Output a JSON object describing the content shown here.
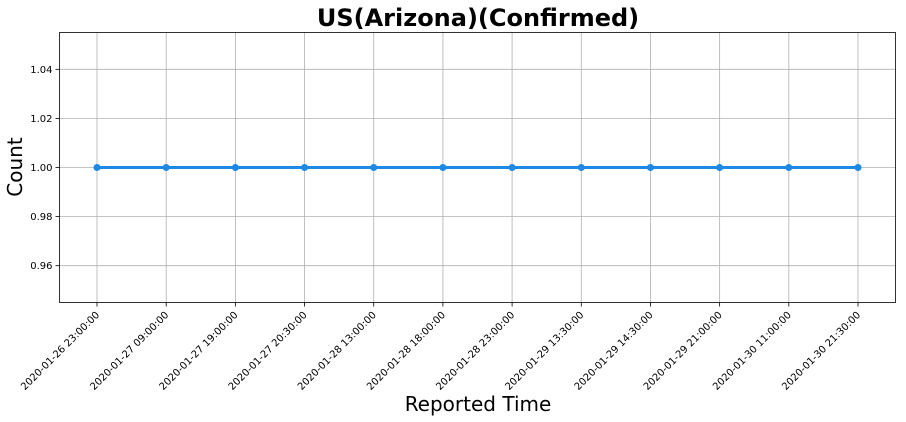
{
  "chart_data": {
    "type": "line",
    "title": "US(Arizona)(Confirmed)",
    "xlabel": "Reported Time",
    "ylabel": "Count",
    "categories": [
      "2020-01-26 23:00:00",
      "2020-01-27 09:00:00",
      "2020-01-27 19:00:00",
      "2020-01-27 20:30:00",
      "2020-01-28 13:00:00",
      "2020-01-28 18:00:00",
      "2020-01-28 23:00:00",
      "2020-01-29 13:30:00",
      "2020-01-29 14:30:00",
      "2020-01-29 21:00:00",
      "2020-01-30 11:00:00",
      "2020-01-30 21:30:00"
    ],
    "series": [
      {
        "values": [
          1,
          1,
          1,
          1,
          1,
          1,
          1,
          1,
          1,
          1,
          1,
          1
        ],
        "color": "#1e88e5"
      }
    ],
    "ylim": [
      0.945,
      1.055
    ],
    "yticks": [
      "0.96",
      "0.98",
      "1.00",
      "1.02",
      "1.04"
    ],
    "grid": true,
    "x_tick_rotation": -45
  }
}
